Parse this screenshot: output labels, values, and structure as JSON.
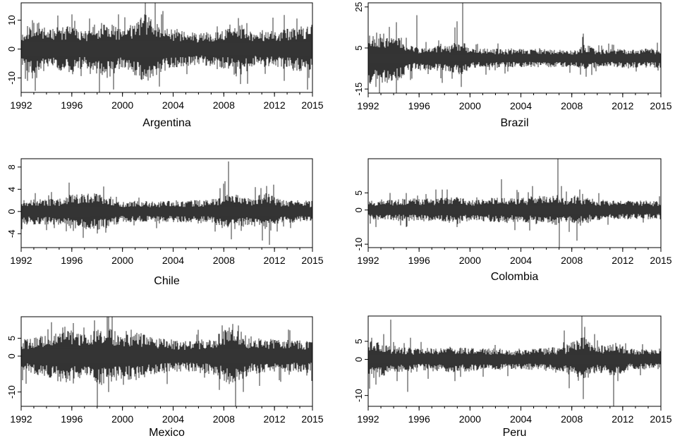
{
  "chart_data": [
    {
      "type": "line",
      "title": "Argentina",
      "xlabel": "",
      "ylabel": "",
      "xlim": [
        1992,
        2015
      ],
      "ylim": [
        -15,
        16
      ],
      "xticks": [
        "1992",
        "1996",
        "2000",
        "2004",
        "2008",
        "2012",
        "2015"
      ],
      "yticks": [
        "-10",
        "0",
        "10"
      ],
      "grid": false,
      "noise": {
        "base": 1.5,
        "seed": 11
      },
      "volatility": [
        [
          1992,
          1.2
        ],
        [
          1993,
          2.4
        ],
        [
          1994,
          1.6
        ],
        [
          1996,
          1.8
        ],
        [
          1997,
          1.4
        ],
        [
          1998.8,
          2.3
        ],
        [
          2000,
          1.4
        ],
        [
          2001.8,
          2.7
        ],
        [
          2003.5,
          1.6
        ],
        [
          2006,
          1.2
        ],
        [
          2008.5,
          1.6
        ],
        [
          2009,
          2.2
        ],
        [
          2010.5,
          1.3
        ],
        [
          2012.5,
          1.5
        ],
        [
          2015,
          1.9
        ]
      ],
      "spikes": [
        [
          1992.5,
          -11
        ],
        [
          1992.9,
          10
        ],
        [
          1993.2,
          -10
        ],
        [
          1996.0,
          12
        ],
        [
          1998.2,
          -15
        ],
        [
          1999.3,
          -14
        ],
        [
          1999.7,
          12
        ],
        [
          2000.2,
          11
        ],
        [
          2002.1,
          11
        ],
        [
          2002.6,
          16
        ],
        [
          2002.9,
          -13
        ],
        [
          2003.1,
          12
        ],
        [
          2009.8,
          9
        ],
        [
          2009.9,
          -12
        ],
        [
          2012.8,
          -11
        ],
        [
          2014.7,
          -10
        ]
      ]
    },
    {
      "type": "line",
      "title": "Brazil",
      "xlabel": "",
      "ylabel": "",
      "xlim": [
        1992,
        2015
      ],
      "ylim": [
        -17,
        27
      ],
      "xticks": [
        "1992",
        "1996",
        "2000",
        "2004",
        "2008",
        "2012",
        "2015"
      ],
      "yticks": [
        "-15",
        "5",
        "25"
      ],
      "grid": false,
      "noise": {
        "base": 1.6,
        "seed": 23
      },
      "volatility": [
        [
          1992,
          2.8
        ],
        [
          1994.5,
          2.2
        ],
        [
          1995.5,
          1.2
        ],
        [
          1998.5,
          1.4
        ],
        [
          1999.3,
          1.9
        ],
        [
          2000,
          1.0
        ],
        [
          2008.5,
          0.9
        ],
        [
          2009,
          1.5
        ],
        [
          2010,
          0.9
        ],
        [
          2015,
          1.0
        ]
      ],
      "spikes": [
        [
          1992.6,
          -14
        ],
        [
          1993.0,
          10
        ],
        [
          1993.5,
          -12
        ],
        [
          1995.0,
          10
        ],
        [
          1995.8,
          21
        ],
        [
          1997.8,
          -12
        ],
        [
          1998.6,
          -10
        ],
        [
          1998.8,
          15
        ],
        [
          1999.0,
          18
        ],
        [
          1999.3,
          -14
        ],
        [
          1999.4,
          27
        ],
        [
          2008.7,
          -8
        ],
        [
          2008.9,
          12
        ],
        [
          2009.1,
          -9
        ],
        [
          2014.8,
          -6
        ]
      ]
    },
    {
      "type": "line",
      "title": "Chile",
      "xlabel": "",
      "ylabel": "",
      "xlim": [
        1992,
        2015
      ],
      "ylim": [
        -6.5,
        9.5
      ],
      "xticks": [
        "1992",
        "1996",
        "2000",
        "2004",
        "2008",
        "2012",
        "2015"
      ],
      "yticks": [
        "-4",
        "0",
        "4",
        "8"
      ],
      "grid": false,
      "noise": {
        "base": 0.8,
        "seed": 37
      },
      "volatility": [
        [
          1992,
          1.0
        ],
        [
          1995,
          1.0
        ],
        [
          1996,
          1.3
        ],
        [
          1998.5,
          1.4
        ],
        [
          2000,
          0.8
        ],
        [
          2004,
          0.8
        ],
        [
          2007,
          0.9
        ],
        [
          2008.5,
          1.5
        ],
        [
          2010,
          1.0
        ],
        [
          2011.5,
          1.5
        ],
        [
          2012.5,
          0.9
        ],
        [
          2015,
          0.8
        ]
      ],
      "spikes": [
        [
          1993.1,
          3.3
        ],
        [
          1994.6,
          -3.0
        ],
        [
          1995.8,
          5.2
        ],
        [
          1996.1,
          -3.5
        ],
        [
          1998.5,
          4.5
        ],
        [
          1998.7,
          -3.8
        ],
        [
          2001.3,
          2.5
        ],
        [
          2007.3,
          -3.6
        ],
        [
          2007.7,
          4.2
        ],
        [
          2008.0,
          5.0
        ],
        [
          2008.4,
          9.0
        ],
        [
          2008.6,
          -5.0
        ],
        [
          2011.4,
          4.6
        ],
        [
          2011.6,
          -6.0
        ],
        [
          2013.3,
          -3.0
        ]
      ]
    },
    {
      "type": "line",
      "title": "Colombia",
      "xlabel": "",
      "ylabel": "",
      "xlim": [
        1992,
        2015
      ],
      "ylim": [
        -11,
        15
      ],
      "xticks": [
        "1992",
        "1996",
        "2000",
        "2004",
        "2008",
        "2012",
        "2015"
      ],
      "yticks": [
        "-10",
        "0",
        "5"
      ],
      "grid": false,
      "noise": {
        "base": 1.0,
        "seed": 53
      },
      "volatility": [
        [
          1992,
          1.0
        ],
        [
          1998,
          1.2
        ],
        [
          1999,
          1.5
        ],
        [
          2000,
          1.0
        ],
        [
          2002.5,
          1.3
        ],
        [
          2004,
          1.2
        ],
        [
          2006.5,
          1.6
        ],
        [
          2007.5,
          1.2
        ],
        [
          2008.5,
          1.4
        ],
        [
          2010,
          1.0
        ],
        [
          2015,
          0.9
        ]
      ],
      "spikes": [
        [
          1992.6,
          -5
        ],
        [
          1993.7,
          5
        ],
        [
          1995.0,
          -5
        ],
        [
          1997.3,
          6
        ],
        [
          1998.2,
          6
        ],
        [
          1999.0,
          -5
        ],
        [
          2002.5,
          9
        ],
        [
          2004.7,
          -6
        ],
        [
          2004.9,
          7
        ],
        [
          2006.9,
          15
        ],
        [
          2007.0,
          -11
        ],
        [
          2007.2,
          7
        ],
        [
          2008.4,
          -9
        ],
        [
          2008.6,
          6
        ],
        [
          2014.9,
          4
        ]
      ]
    },
    {
      "type": "line",
      "title": "Mexico",
      "xlabel": "",
      "ylabel": "",
      "xlim": [
        1992,
        2015
      ],
      "ylim": [
        -14,
        11
      ],
      "xticks": [
        "1992",
        "1996",
        "2000",
        "2004",
        "2008",
        "2012",
        "2015"
      ],
      "yticks": [
        "-10",
        "0",
        "5"
      ],
      "grid": false,
      "noise": {
        "base": 1.3,
        "seed": 67
      },
      "volatility": [
        [
          1992,
          1.2
        ],
        [
          1994.5,
          1.6
        ],
        [
          1995.5,
          2.2
        ],
        [
          1996.5,
          1.6
        ],
        [
          1998,
          2.1
        ],
        [
          1999,
          2.0
        ],
        [
          2000,
          1.6
        ],
        [
          2001,
          1.8
        ],
        [
          2002.5,
          1.3
        ],
        [
          2005,
          1.1
        ],
        [
          2007,
          1.3
        ],
        [
          2008.8,
          2.3
        ],
        [
          2010,
          1.3
        ],
        [
          2015,
          1.1
        ]
      ],
      "spikes": [
        [
          1994.9,
          -7
        ],
        [
          1995.3,
          8
        ],
        [
          1995.7,
          7
        ],
        [
          1997.8,
          10
        ],
        [
          1998.0,
          -14
        ],
        [
          1998.8,
          11
        ],
        [
          1998.9,
          -10
        ],
        [
          2000.1,
          -8
        ],
        [
          2000.3,
          7
        ],
        [
          2003.5,
          -6
        ],
        [
          2006.5,
          -6
        ],
        [
          2008.7,
          9
        ],
        [
          2008.9,
          -7
        ],
        [
          2014.8,
          4
        ]
      ]
    },
    {
      "type": "line",
      "title": "Peru",
      "xlabel": "",
      "ylabel": "",
      "xlim": [
        1992,
        2015
      ],
      "ylim": [
        -13,
        12
      ],
      "xticks": [
        "1992",
        "1996",
        "2000",
        "2004",
        "2008",
        "2012",
        "2015"
      ],
      "yticks": [
        "-10",
        "0",
        "5"
      ],
      "grid": false,
      "noise": {
        "base": 1.0,
        "seed": 79
      },
      "volatility": [
        [
          1992,
          2.0
        ],
        [
          1993.5,
          1.4
        ],
        [
          1994.5,
          1.2
        ],
        [
          1996,
          1.0
        ],
        [
          1998.5,
          1.2
        ],
        [
          2004,
          0.9
        ],
        [
          2007.5,
          1.2
        ],
        [
          2008.8,
          2.2
        ],
        [
          2010,
          1.2
        ],
        [
          2011.5,
          1.6
        ],
        [
          2012.5,
          1.0
        ],
        [
          2015,
          0.9
        ]
      ],
      "spikes": [
        [
          1992.3,
          6
        ],
        [
          1992.6,
          -7
        ],
        [
          1993.2,
          7
        ],
        [
          1993.8,
          11
        ],
        [
          1995.1,
          -9
        ],
        [
          1995.3,
          6
        ],
        [
          1998.8,
          -6
        ],
        [
          2002.0,
          4
        ],
        [
          2007.4,
          8
        ],
        [
          2007.8,
          -8
        ],
        [
          2008.8,
          12
        ],
        [
          2008.9,
          -11
        ],
        [
          2009.0,
          9
        ],
        [
          2009.8,
          7
        ],
        [
          2011.3,
          -13
        ],
        [
          2011.6,
          -6
        ],
        [
          2014.9,
          3
        ]
      ]
    }
  ]
}
